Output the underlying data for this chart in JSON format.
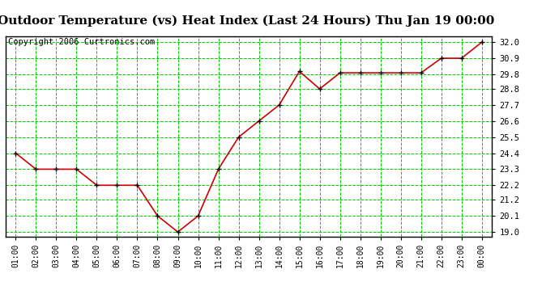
{
  "title": "Outdoor Temperature (vs) Heat Index (Last 24 Hours) Thu Jan 19 00:00",
  "copyright": "Copyright 2006 Curtronics.com",
  "x_labels": [
    "01:00",
    "02:00",
    "03:00",
    "04:00",
    "05:00",
    "06:00",
    "07:00",
    "08:00",
    "09:00",
    "10:00",
    "11:00",
    "12:00",
    "13:00",
    "14:00",
    "15:00",
    "16:00",
    "17:00",
    "18:00",
    "19:00",
    "20:00",
    "21:00",
    "22:00",
    "23:00",
    "00:00"
  ],
  "y_values": [
    24.4,
    23.3,
    23.3,
    23.3,
    22.2,
    22.2,
    22.2,
    20.1,
    19.0,
    20.1,
    23.3,
    25.5,
    26.6,
    27.7,
    30.0,
    28.8,
    29.9,
    29.9,
    29.9,
    29.9,
    29.9,
    30.9,
    30.9,
    32.0
  ],
  "y_ticks": [
    19.0,
    20.1,
    21.2,
    22.2,
    23.3,
    24.4,
    25.5,
    26.6,
    27.7,
    28.8,
    29.8,
    30.9,
    32.0
  ],
  "y_tick_labels": [
    "19.0",
    "20.1",
    "21.2",
    "22.2",
    "23.3",
    "24.4",
    "25.5",
    "26.6",
    "27.7",
    "28.8",
    "29.8",
    "30.9",
    "32.0"
  ],
  "ylim": [
    18.7,
    32.4
  ],
  "line_color": "#cc0000",
  "marker_color": "#000000",
  "grid_color": "#00cc00",
  "bg_color": "#ffffff",
  "title_fontsize": 11,
  "copyright_fontsize": 7.5
}
